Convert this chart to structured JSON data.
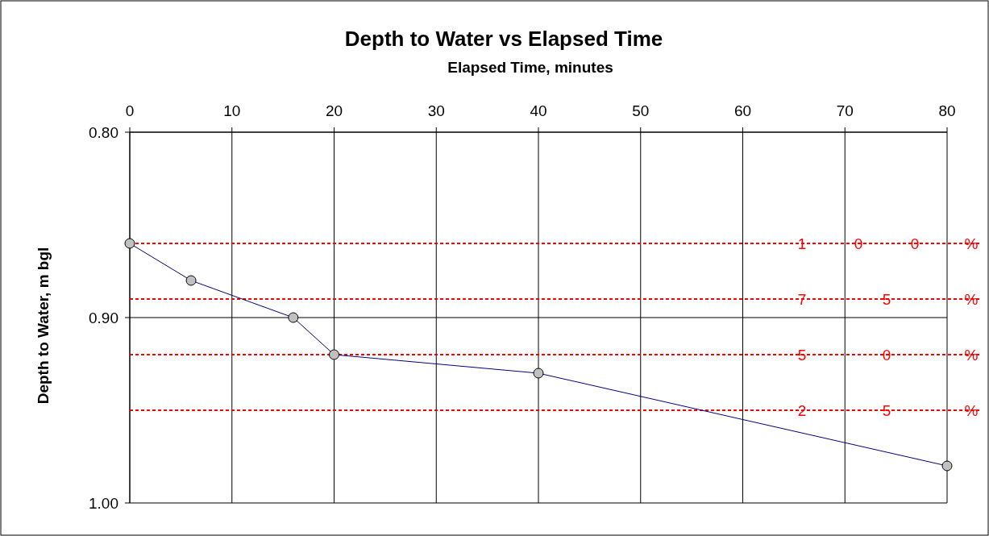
{
  "chart_data": {
    "type": "line",
    "title": "Depth to Water vs Elapsed Time",
    "xlabel": "Elapsed Time, minutes",
    "ylabel": "Depth to Water, m bgl",
    "x": [
      0,
      6,
      16,
      20,
      40,
      80
    ],
    "series": [
      {
        "color": "#000080",
        "values": [
          0.86,
          0.88,
          0.9,
          0.92,
          0.93,
          0.98
        ]
      }
    ],
    "marker": "circle",
    "line_style": "solid",
    "grid": true,
    "xlim": [
      0,
      80
    ],
    "xticks": [
      0,
      10,
      20,
      30,
      40,
      50,
      60,
      70,
      80
    ],
    "ylim": [
      1.0,
      0.8
    ],
    "yticks": [
      {
        "value": 0.8,
        "label": "0.80"
      },
      {
        "value": 0.9,
        "label": "0.90"
      },
      {
        "value": 1.0,
        "label": "1.00"
      }
    ],
    "ref_lines": [
      {
        "axis": "y",
        "value": 0.86,
        "color": "#ff0000",
        "line_style": "dashed"
      },
      {
        "axis": "y",
        "value": 0.89,
        "color": "#ff0000",
        "line_style": "dashed"
      },
      {
        "axis": "y",
        "value": 0.92,
        "color": "#ff0000",
        "line_style": "dashed"
      },
      {
        "axis": "y",
        "value": 0.95,
        "color": "#ff0000",
        "line_style": "dashed"
      }
    ],
    "annotations": [
      {
        "text": "100%",
        "y": 0.86
      },
      {
        "text": "75%",
        "y": 0.89
      },
      {
        "text": "50%",
        "y": 0.92
      },
      {
        "text": "25%",
        "y": 0.95
      }
    ]
  }
}
